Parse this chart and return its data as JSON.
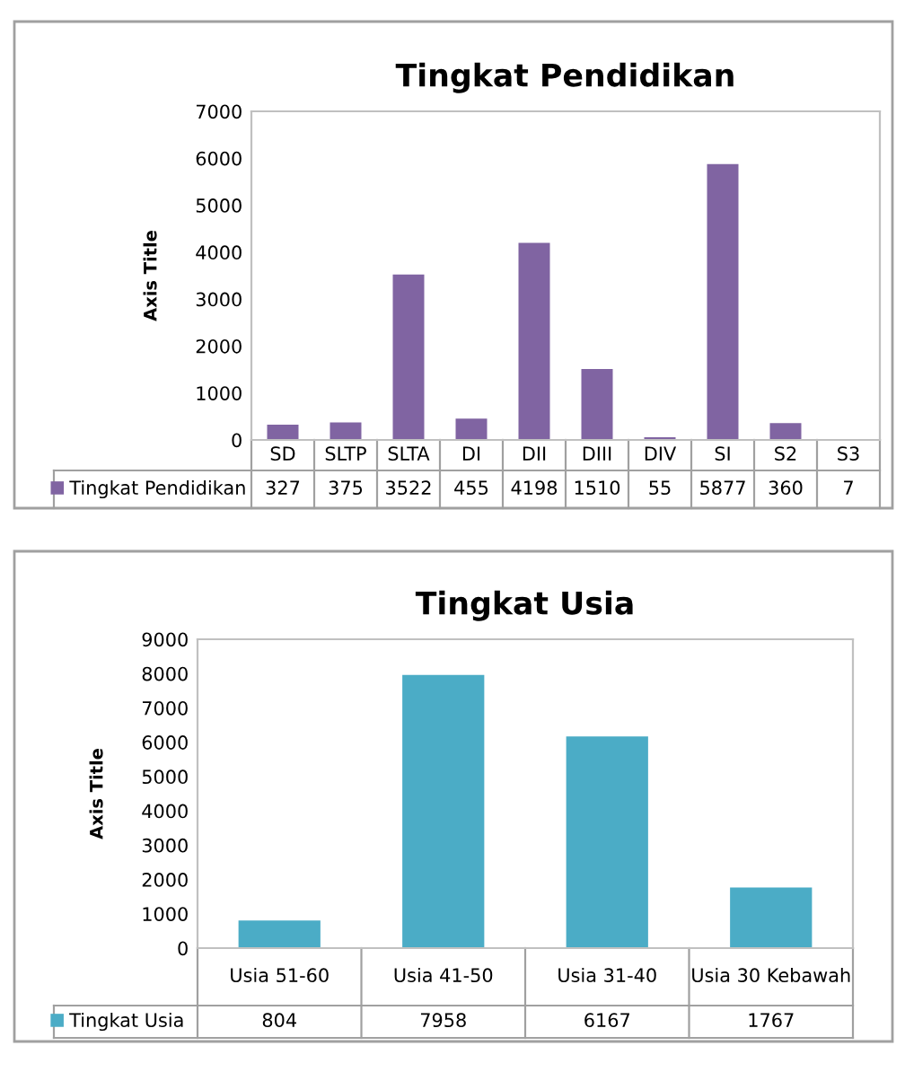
{
  "chart_data": [
    {
      "type": "bar",
      "title": "Tingkat Pendidikan",
      "ylabel": "Axis Title",
      "categories": [
        "SD",
        "SLTP",
        "SLTA",
        "DI",
        "DII",
        "DIII",
        "DIV",
        "SI",
        "S2",
        "S3"
      ],
      "series": [
        {
          "name": "Tingkat Pendidikan",
          "color": "#8064a2",
          "values": [
            327,
            375,
            3522,
            455,
            4198,
            1510,
            55,
            5877,
            360,
            7
          ]
        }
      ],
      "ylim": [
        0,
        7000
      ],
      "yticks": [
        0,
        1000,
        2000,
        3000,
        4000,
        5000,
        6000,
        7000
      ],
      "grid": false,
      "legend": "bottom left",
      "data_labels": true
    },
    {
      "type": "bar",
      "title": "Tingkat Usia",
      "ylabel": "Axis Title",
      "categories": [
        "Usia 51-60",
        "Usia 41-50",
        "Usia 31-40",
        "Usia 30 Kebawah"
      ],
      "series": [
        {
          "name": "Tingkat Usia",
          "color": "#4bacc6",
          "values": [
            804,
            7958,
            6167,
            1767
          ]
        }
      ],
      "ylim": [
        0,
        9000
      ],
      "yticks": [
        0,
        1000,
        2000,
        3000,
        4000,
        5000,
        6000,
        7000,
        8000,
        9000
      ],
      "grid": false,
      "legend": "bottom left",
      "data_labels": true
    }
  ]
}
